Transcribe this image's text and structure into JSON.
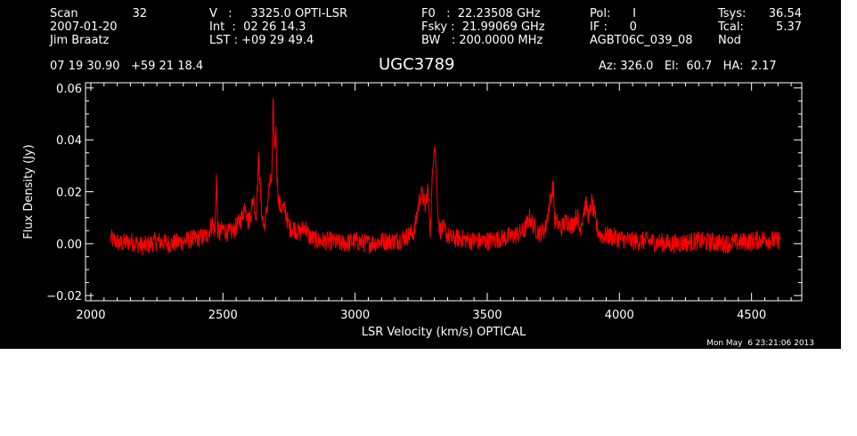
{
  "header": {
    "col1": {
      "row1_label": "Scan",
      "row1_value": "32",
      "row2": "2007-01-20",
      "row3": "Jim Braatz"
    },
    "col2": {
      "row1": "V   :     3325.0 OPTI-LSR",
      "row2": "Int  :  02 26 14.3",
      "row3": "LST : +09 29 49.4"
    },
    "col3": {
      "row1": "F0   :  22.23508 GHz",
      "row2": "Fsky :  21.99069 GHz",
      "row3": "BW   : 200.0000 MHz"
    },
    "col4": {
      "row1": "Pol:      I",
      "row2": "IF :      0",
      "row3": "AGBT06C_039_08"
    },
    "col5": {
      "row1_label": "Tsys:",
      "row1_value": "36.54",
      "row2_label": "Tcal:",
      "row2_value": "5.37",
      "row3": "Nod"
    },
    "coords": "07 19 30.90   +59 21 18.4",
    "azel": "Az: 326.0   El:  60.7   HA:  2.17"
  },
  "timestamp": "Mon May  6 23:21:06 2013",
  "colors": {
    "background": "#000000",
    "axes": "#ffffff",
    "trace": "#ff0000"
  },
  "chart_data": {
    "type": "line",
    "title": "UGC3789",
    "xlabel": "LSR Velocity (km/s) OPTICAL",
    "ylabel": "Flux Density (Jy)",
    "xlim": [
      1980,
      4690
    ],
    "ylim": [
      -0.022,
      0.062
    ],
    "xticks": [
      2000,
      2500,
      3000,
      3500,
      4000,
      4500
    ],
    "yticks": [
      -0.02,
      0.0,
      0.02,
      0.04,
      0.06
    ],
    "xtick_labels": [
      "2000",
      "2500",
      "3000",
      "3500",
      "4000",
      "4500"
    ],
    "ytick_labels": [
      "−0.02",
      "0.00",
      "0.02",
      "0.04",
      "0.06"
    ],
    "grid": false,
    "series": [
      {
        "name": "",
        "color": "#ff0000",
        "x": [
          2075,
          2110,
          2150,
          2200,
          2250,
          2300,
          2350,
          2400,
          2440,
          2460,
          2470,
          2475,
          2480,
          2485,
          2490,
          2500,
          2520,
          2540,
          2560,
          2575,
          2585,
          2595,
          2605,
          2615,
          2625,
          2635,
          2645,
          2655,
          2665,
          2675,
          2685,
          2690,
          2695,
          2700,
          2705,
          2712,
          2720,
          2735,
          2750,
          2770,
          2790,
          2810,
          2825,
          2840,
          2860,
          2900,
          2950,
          3000,
          3050,
          3100,
          3150,
          3200,
          3225,
          3235,
          3245,
          3255,
          3265,
          3275,
          3285,
          3295,
          3300,
          3305,
          3310,
          3320,
          3330,
          3345,
          3360,
          3400,
          3450,
          3500,
          3550,
          3600,
          3640,
          3660,
          3680,
          3700,
          3720,
          3735,
          3745,
          3750,
          3755,
          3765,
          3780,
          3800,
          3820,
          3840,
          3850,
          3865,
          3875,
          3885,
          3895,
          3905,
          3915,
          3930,
          3960,
          4000,
          4050,
          4100,
          4200,
          4300,
          4400,
          4500,
          4550,
          4590,
          4610
        ],
        "y": [
          0.002,
          0.0,
          0.001,
          -0.001,
          0.001,
          0.0,
          0.001,
          0.002,
          0.003,
          0.008,
          0.004,
          0.028,
          0.006,
          0.003,
          0.004,
          0.006,
          0.004,
          0.005,
          0.008,
          0.011,
          0.016,
          0.008,
          0.012,
          0.018,
          0.009,
          0.033,
          0.014,
          0.006,
          0.012,
          0.022,
          0.025,
          0.055,
          0.035,
          0.046,
          0.025,
          0.015,
          0.014,
          0.013,
          0.006,
          0.006,
          0.004,
          0.007,
          0.003,
          0.002,
          0.001,
          0.001,
          0.0,
          0.001,
          0.0,
          0.001,
          0.001,
          0.003,
          0.005,
          0.012,
          0.018,
          0.019,
          0.014,
          0.021,
          0.005,
          0.032,
          0.04,
          0.033,
          0.018,
          0.005,
          0.006,
          0.004,
          0.002,
          0.002,
          0.001,
          0.001,
          0.002,
          0.003,
          0.005,
          0.01,
          0.006,
          0.004,
          0.006,
          0.015,
          0.02,
          0.023,
          0.009,
          0.008,
          0.006,
          0.009,
          0.007,
          0.011,
          0.005,
          0.013,
          0.015,
          0.01,
          0.016,
          0.011,
          0.006,
          0.003,
          0.003,
          0.002,
          0.001,
          0.001,
          0.0,
          0.001,
          0.0,
          0.001,
          0.002,
          0.001,
          0.002
        ]
      }
    ]
  }
}
